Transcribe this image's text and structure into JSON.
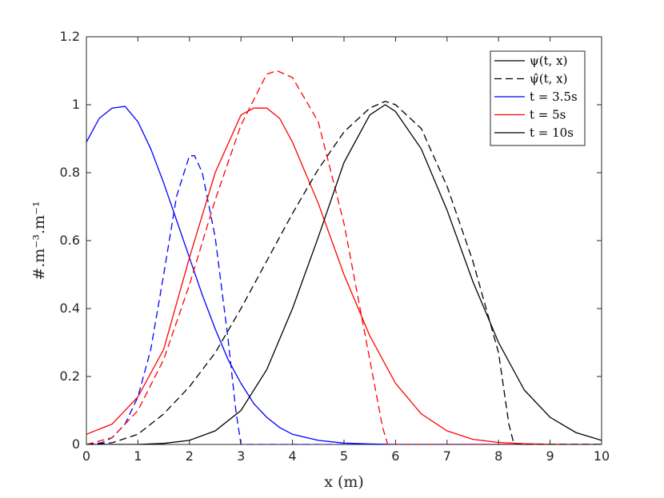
{
  "chart_data": {
    "type": "line",
    "xlabel": "x (m)",
    "ylabel": "#.m⁻³.m⁻¹",
    "xlim": [
      0,
      10
    ],
    "ylim": [
      0,
      1.2
    ],
    "x_ticks": [
      "0",
      "1",
      "2",
      "3",
      "4",
      "5",
      "6",
      "7",
      "8",
      "9",
      "10"
    ],
    "y_ticks": [
      "0",
      "0.2",
      "0.4",
      "0.6",
      "0.8",
      "1",
      "1.2"
    ],
    "grid": false,
    "legend_position": "top-right",
    "legend": [
      {
        "label": "ψ(t, x)",
        "color": "#000000",
        "style": "solid"
      },
      {
        "label": "ψ̂(t, x)",
        "color": "#000000",
        "style": "dashed"
      },
      {
        "label": "t = 3.5s",
        "color": "#0000ff",
        "style": "solid"
      },
      {
        "label": "t = 5s",
        "color": "#ff0000",
        "style": "solid"
      },
      {
        "label": "t = 10s",
        "color": "#000000",
        "style": "solid"
      }
    ],
    "series": [
      {
        "t": "3.5s",
        "kind": "psi",
        "color": "#0000ff",
        "style": "solid",
        "x": [
          0,
          0.25,
          0.5,
          0.75,
          1,
          1.25,
          1.5,
          1.75,
          2,
          2.25,
          2.5,
          2.75,
          3,
          3.25,
          3.5,
          3.75,
          4,
          4.5,
          5,
          5.5,
          6,
          7,
          8,
          9,
          10
        ],
        "y": [
          0.89,
          0.96,
          0.99,
          0.995,
          0.95,
          0.87,
          0.77,
          0.66,
          0.55,
          0.44,
          0.34,
          0.25,
          0.18,
          0.12,
          0.08,
          0.05,
          0.03,
          0.012,
          0.004,
          0.0015,
          0,
          0,
          0,
          0,
          0
        ]
      },
      {
        "t": "3.5s",
        "kind": "psi_hat",
        "color": "#0000ff",
        "style": "dashed",
        "x": [
          0,
          0.3,
          0.5,
          0.75,
          1,
          1.25,
          1.5,
          1.75,
          2,
          2.1,
          2.25,
          2.5,
          2.75,
          2.9,
          3.0,
          3.5,
          4,
          6,
          8,
          10
        ],
        "y": [
          0,
          0.005,
          0.02,
          0.06,
          0.14,
          0.28,
          0.5,
          0.73,
          0.85,
          0.85,
          0.8,
          0.61,
          0.31,
          0.1,
          0,
          0,
          0,
          0,
          0,
          0
        ]
      },
      {
        "t": "5s",
        "kind": "psi",
        "color": "#ff0000",
        "style": "solid",
        "x": [
          0,
          0.5,
          1,
          1.5,
          2,
          2.5,
          3,
          3.25,
          3.5,
          3.75,
          4,
          4.5,
          5,
          5.5,
          6,
          6.5,
          7,
          7.5,
          8,
          8.5,
          9,
          9.5,
          10
        ],
        "y": [
          0.03,
          0.06,
          0.14,
          0.28,
          0.55,
          0.8,
          0.97,
          0.99,
          0.99,
          0.96,
          0.89,
          0.71,
          0.5,
          0.32,
          0.18,
          0.09,
          0.04,
          0.015,
          0.006,
          0.002,
          0.0005,
          0,
          0
        ]
      },
      {
        "t": "5s",
        "kind": "psi_hat",
        "color": "#ff0000",
        "style": "dashed",
        "x": [
          0,
          0.5,
          1,
          1.5,
          2,
          2.5,
          3,
          3.5,
          3.7,
          4,
          4.5,
          5,
          5.5,
          5.75,
          5.85,
          6,
          8,
          10
        ],
        "y": [
          0,
          0.02,
          0.1,
          0.25,
          0.47,
          0.72,
          0.94,
          1.09,
          1.1,
          1.08,
          0.95,
          0.65,
          0.25,
          0.05,
          0,
          0,
          0,
          0
        ]
      },
      {
        "t": "10s",
        "kind": "psi",
        "color": "#000000",
        "style": "solid",
        "x": [
          0,
          1,
          1.5,
          2,
          2.5,
          3,
          3.5,
          4,
          4.5,
          5,
          5.5,
          5.8,
          6,
          6.5,
          7,
          7.5,
          8,
          8.5,
          9,
          9.5,
          10
        ],
        "y": [
          0,
          0,
          0.003,
          0.012,
          0.04,
          0.1,
          0.22,
          0.4,
          0.61,
          0.83,
          0.97,
          1.0,
          0.98,
          0.87,
          0.69,
          0.48,
          0.3,
          0.16,
          0.08,
          0.035,
          0.012
        ]
      },
      {
        "t": "10s",
        "kind": "psi_hat",
        "color": "#000000",
        "style": "dashed",
        "x": [
          0,
          0.5,
          1,
          1.5,
          2,
          2.5,
          3,
          3.5,
          4,
          4.5,
          5,
          5.5,
          5.8,
          6,
          6.5,
          7,
          7.5,
          8,
          8.2,
          8.3,
          9,
          10
        ],
        "y": [
          0,
          0.005,
          0.03,
          0.09,
          0.17,
          0.27,
          0.4,
          0.54,
          0.68,
          0.81,
          0.92,
          0.99,
          1.01,
          1.0,
          0.93,
          0.76,
          0.54,
          0.27,
          0.06,
          0,
          0,
          0
        ]
      }
    ]
  }
}
